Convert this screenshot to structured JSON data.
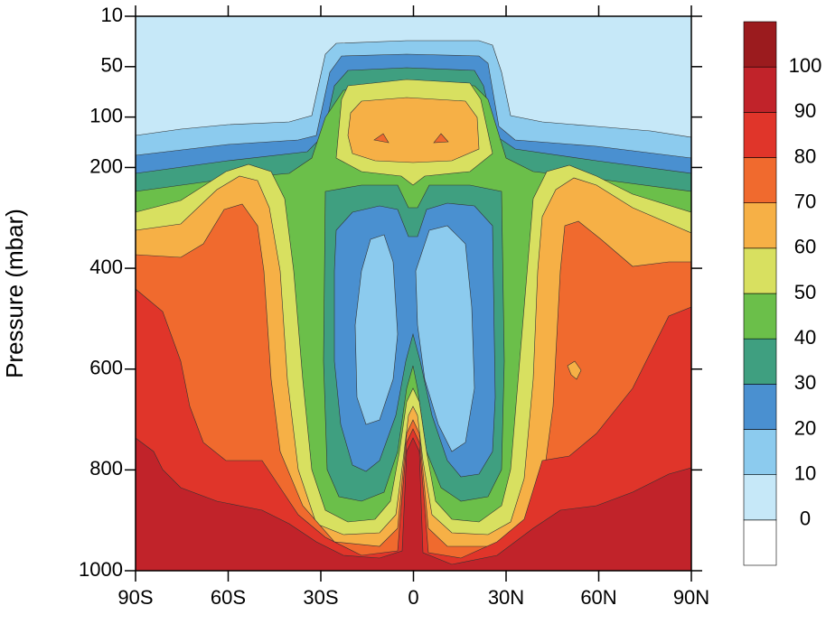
{
  "chart_data": {
    "type": "contour",
    "y_label": "Pressure (mbar)",
    "xlim": [
      -90,
      90
    ],
    "xticks": [
      {
        "value": -90,
        "label": "90S"
      },
      {
        "value": -60,
        "label": "60S"
      },
      {
        "value": -30,
        "label": "30S"
      },
      0,
      {
        "value": 30,
        "label": "30N"
      },
      {
        "value": 60,
        "label": "60N"
      },
      {
        "value": 90,
        "label": "90N"
      }
    ],
    "ylim": [
      10,
      1000
    ],
    "yticks": [
      10,
      50,
      100,
      200,
      400,
      600,
      800,
      1000
    ],
    "colorbar": {
      "levels": [
        0,
        10,
        20,
        30,
        40,
        50,
        60,
        70,
        80,
        90,
        100
      ],
      "colors": [
        "#ffffff",
        "#c6e8f8",
        "#8ccbee",
        "#4a90d0",
        "#3f9f80",
        "#6bbf4a",
        "#d8e060",
        "#f6b046",
        "#f06a2e",
        "#e0352a",
        "#c1232a",
        "#9b1b1e"
      ]
    }
  }
}
